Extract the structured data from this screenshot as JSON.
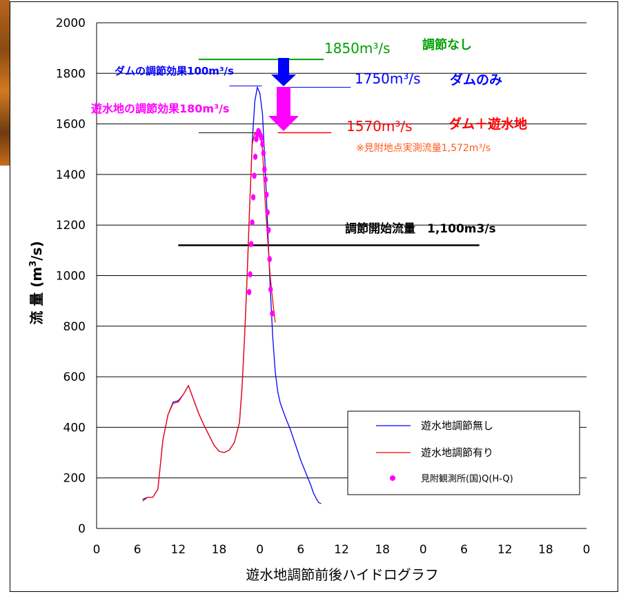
{
  "chart_data": {
    "type": "line",
    "xlabel": "遊水地調節前後ハイドログラフ",
    "ylabel_main": "流 量 (m",
    "ylabel_sup": "3",
    "ylabel_tail": "/s)",
    "ylim": [
      0,
      2000
    ],
    "yticks": [
      "0",
      "200",
      "400",
      "600",
      "800",
      "1000",
      "1200",
      "1400",
      "1600",
      "1800",
      "2000"
    ],
    "xlim": [
      0,
      96
    ],
    "xticks": [
      "0",
      "6",
      "12",
      "18",
      "0",
      "6",
      "12",
      "18",
      "0",
      "6",
      "12",
      "18",
      "0"
    ],
    "grid": "horizontal",
    "series": [
      {
        "name": "遊水地調節無し",
        "color": "#0000ff",
        "style": "line",
        "x": [
          9,
          10,
          11,
          12,
          13,
          14,
          15,
          16,
          17,
          18,
          19,
          20,
          21,
          22,
          23,
          24,
          25,
          26,
          27,
          28,
          28.5,
          29,
          29.5,
          30,
          30.5,
          31,
          31.5,
          32,
          32.5,
          33,
          33.5,
          34,
          34.5,
          35,
          35.5,
          36,
          37,
          38,
          39,
          40,
          41,
          42,
          42.5,
          43,
          43.5,
          44
        ],
        "y": [
          115,
          123,
          123,
          155,
          350,
          450,
          500,
          505,
          530,
          565,
          510,
          455,
          410,
          370,
          330,
          305,
          300,
          310,
          340,
          420,
          560,
          760,
          1000,
          1280,
          1530,
          1690,
          1745,
          1720,
          1640,
          1440,
          1200,
          960,
          760,
          620,
          540,
          495,
          440,
          390,
          330,
          270,
          220,
          170,
          140,
          120,
          103,
          98
        ]
      },
      {
        "name": "遊水地調節有り",
        "color": "#ff0000",
        "style": "line",
        "x": [
          9,
          10,
          11,
          12,
          13,
          14,
          15,
          16,
          17,
          18,
          19,
          20,
          21,
          22,
          23,
          24,
          25,
          26,
          27,
          28,
          28.5,
          29,
          29.5,
          30,
          30.5,
          31,
          31.5,
          32,
          32.5,
          33,
          33.5,
          34,
          34.5,
          35
        ],
        "y": [
          108,
          123,
          123,
          155,
          350,
          450,
          495,
          500,
          530,
          565,
          510,
          455,
          410,
          370,
          330,
          305,
          300,
          310,
          340,
          420,
          560,
          760,
          1000,
          1280,
          1520,
          1565,
          1570,
          1565,
          1500,
          1300,
          1150,
          1000,
          900,
          815
        ]
      },
      {
        "name": "見附観測所(国)Q(H-Q)",
        "color": "#ff00ff",
        "style": "points",
        "x": [
          29.9,
          30.1,
          30.3,
          30.5,
          30.7,
          30.9,
          31.1,
          31.3,
          31.5,
          31.7,
          31.9,
          32.1,
          32.3,
          32.5,
          32.7,
          32.9,
          33.1,
          33.3,
          33.5,
          33.7,
          33.9,
          34.1,
          34.4
        ],
        "y": [
          935,
          1005,
          1125,
          1210,
          1310,
          1395,
          1470,
          1540,
          1560,
          1572,
          1565,
          1555,
          1545,
          1520,
          1485,
          1420,
          1380,
          1320,
          1250,
          1180,
          1065,
          945,
          850
        ]
      }
    ],
    "annotations": {
      "none_label": "1850m³/s",
      "none_text": "調節なし",
      "dam_label": "1750m³/s",
      "dam_text": "ダムのみ",
      "both_label": "1570m³/s",
      "both_text": "ダム＋遊水地",
      "measured_note": "※見附地点実測流量1,572m³/s",
      "dam_effect": "ダムの調節効果100m³/s",
      "retention_effect": "遊水地の調節効果180m³/s",
      "threshold_text": "調節開始流量　1,100m3/s"
    },
    "annotation_colors": {
      "none": "#00a000",
      "dam": "#0000ff",
      "both": "#ff0000",
      "note": "#ff5a1e",
      "effect_dam": "#0000ff",
      "effect_retention": "#ff00ff",
      "threshold": "#000000"
    },
    "legend_placement": "bottom-right"
  }
}
